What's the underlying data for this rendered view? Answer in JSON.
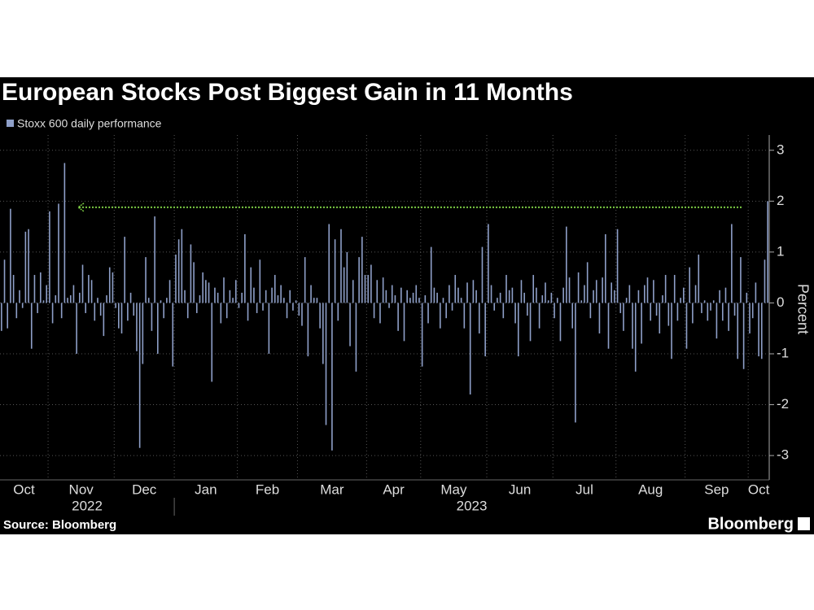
{
  "chart_data": {
    "type": "bar",
    "title": "European Stocks Post Biggest Gain in 11 Months",
    "legend": "Stoxx 600 daily performance",
    "color": "#8e9fc8",
    "y_axis_label": "Percent",
    "source": "Source: Bloomberg",
    "brand": "Bloomberg",
    "ylim": [
      -3.35,
      3.3
    ],
    "yticks": [
      -3,
      -2,
      -1,
      0,
      1,
      2,
      3
    ],
    "grid": true,
    "reference_line": {
      "value": 1.88,
      "color": "#7ac943"
    },
    "years": [
      {
        "label": "2022",
        "months": [
          {
            "label": "Oct",
            "values": [
              -0.55,
              0.85,
              -0.5,
              1.85,
              0.55,
              -0.3,
              0.25,
              -0.1,
              1.4,
              1.45,
              -0.9,
              0.55,
              -0.2,
              0.6,
              0.05,
              0.35
            ]
          },
          {
            "label": "Nov",
            "values": [
              1.8,
              -0.4,
              0.15,
              1.95,
              -0.3,
              2.75,
              0.1,
              0.15,
              0.35,
              -1.0,
              0.2,
              0.75,
              -0.2,
              0.55,
              0.45,
              -0.35,
              0.1,
              -0.25,
              -0.65,
              0.15,
              0.7,
              0.6
            ]
          },
          {
            "label": "Dec",
            "values": [
              -0.1,
              -0.5,
              -0.6,
              1.3,
              -0.35,
              0.2,
              -0.25,
              -0.95,
              -2.85,
              -1.2,
              0.9,
              0.1,
              -0.55,
              1.7,
              -1.0,
              0.05,
              -0.3,
              0.1,
              0.45,
              -1.25
            ]
          }
        ]
      },
      {
        "label": "2023",
        "months": [
          {
            "label": "Jan",
            "values": [
              0.95,
              1.25,
              1.45,
              0.25,
              -0.3,
              1.15,
              0.8,
              -0.2,
              0.15,
              0.6,
              0.45,
              0.4,
              -1.55,
              0.3,
              0.2,
              -0.4,
              0.5,
              -0.3,
              0.25,
              0.1,
              0.45
            ]
          },
          {
            "label": "Feb",
            "values": [
              -0.1,
              0.2,
              1.35,
              -0.35,
              0.7,
              0.3,
              -0.2,
              0.85,
              -0.15,
              0.25,
              -1.0,
              0.3,
              0.55,
              0.15,
              0.35,
              0.1,
              -0.3,
              0.25,
              -0.15,
              0.05
            ]
          },
          {
            "label": "Mar",
            "values": [
              -0.25,
              -0.45,
              0.9,
              -1.05,
              0.35,
              0.1,
              0.1,
              -0.5,
              -1.2,
              -2.4,
              1.55,
              -2.9,
              1.25,
              -0.35,
              1.45,
              0.7,
              1.0,
              -0.85,
              0.45,
              -1.35,
              0.9,
              1.3,
              0.55
            ]
          },
          {
            "label": "Apr",
            "values": [
              0.55,
              0.75,
              -0.3,
              0.45,
              -0.4,
              0.5,
              0.25,
              -0.1,
              0.35,
              0.15,
              -0.55,
              0.3,
              -0.75,
              0.25,
              0.1,
              0.2,
              0.35,
              0.1
            ]
          },
          {
            "label": "May",
            "values": [
              -1.25,
              0.15,
              -0.4,
              1.1,
              0.3,
              0.2,
              -0.5,
              0.1,
              -0.3,
              0.35,
              -0.15,
              0.55,
              0.3,
              0.1,
              -0.5,
              0.4,
              -1.8,
              0.45,
              0.25,
              -0.6,
              1.1,
              -1.05
            ]
          },
          {
            "label": "Jun",
            "values": [
              1.55,
              0.35,
              -0.15,
              0.1,
              0.2,
              -0.3,
              0.55,
              0.25,
              0.3,
              -0.4,
              -1.05,
              0.45,
              0.2,
              -0.25,
              -0.75,
              0.55,
              0.3,
              -0.5,
              0.15,
              0.4,
              0.05,
              0.2
            ]
          },
          {
            "label": "Jul",
            "values": [
              -0.3,
              0.1,
              -0.75,
              0.3,
              1.5,
              0.5,
              -0.5,
              -2.35,
              0.6,
              0.05,
              0.35,
              0.8,
              -0.3,
              0.25,
              0.45,
              -0.6,
              0.5,
              1.35,
              -0.9,
              0.4,
              0.25
            ]
          },
          {
            "label": "Aug",
            "values": [
              1.45,
              -0.2,
              -0.55,
              0.1,
              0.35,
              -0.9,
              -1.35,
              0.25,
              -0.8,
              0.35,
              0.5,
              -0.35,
              0.45,
              -0.25,
              -0.6,
              0.15,
              0.55,
              -0.45,
              -1.1,
              0.55,
              -0.35,
              0.1,
              0.3
            ]
          },
          {
            "label": "Sep",
            "values": [
              -0.9,
              0.7,
              -0.4,
              0.35,
              0.95,
              -0.2,
              0.05,
              -0.35,
              -0.15,
              0.05,
              -0.7,
              0.25,
              -0.35,
              0.3,
              -0.55,
              1.55,
              -0.25,
              -1.1,
              0.9,
              -1.3,
              0.2
            ]
          },
          {
            "label": "Oct",
            "values": [
              -0.6,
              -0.3,
              0.4,
              -1.05,
              -1.1,
              0.85,
              2.0
            ]
          }
        ]
      }
    ]
  }
}
